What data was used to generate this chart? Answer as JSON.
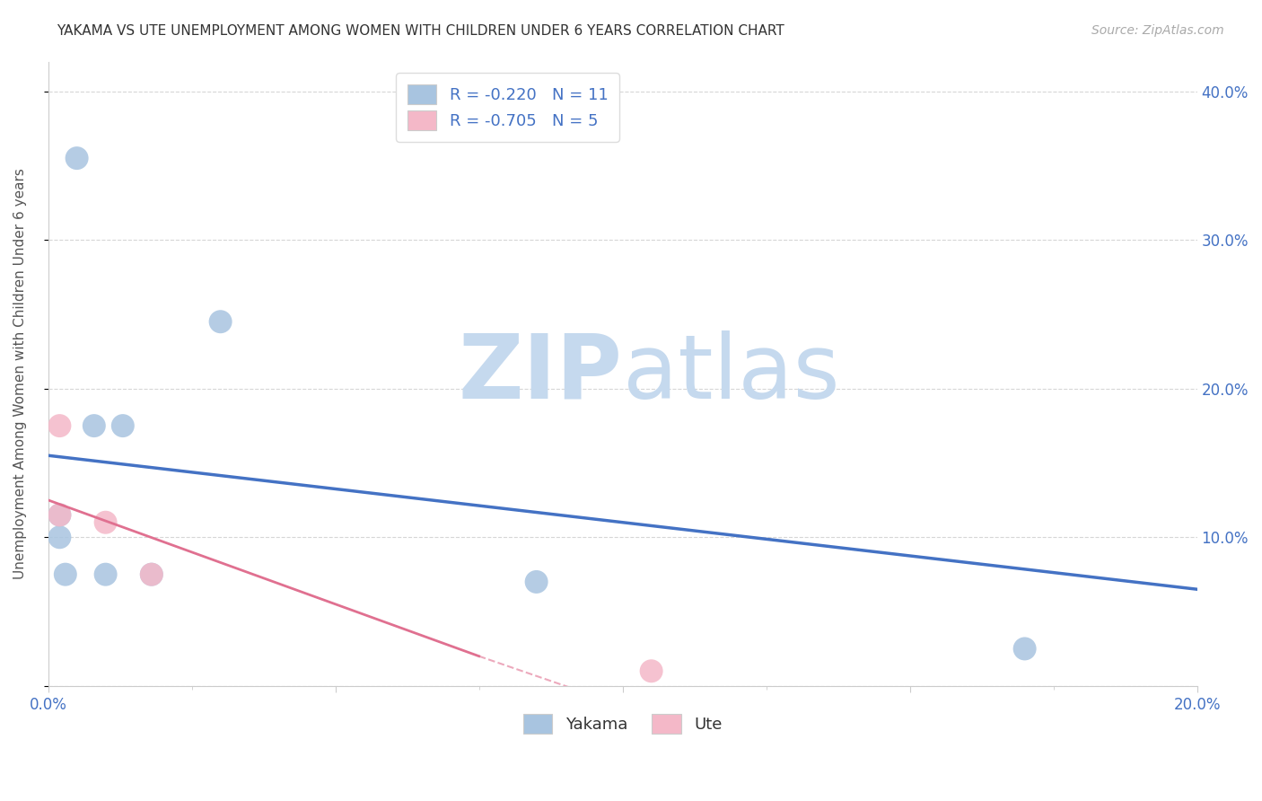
{
  "title": "YAKAMA VS UTE UNEMPLOYMENT AMONG WOMEN WITH CHILDREN UNDER 6 YEARS CORRELATION CHART",
  "source": "Source: ZipAtlas.com",
  "ylabel": "Unemployment Among Women with Children Under 6 years",
  "xlim": [
    0.0,
    0.2
  ],
  "ylim": [
    0.0,
    0.42
  ],
  "yakama_points": [
    [
      0.005,
      0.355
    ],
    [
      0.03,
      0.245
    ],
    [
      0.008,
      0.175
    ],
    [
      0.013,
      0.175
    ],
    [
      0.002,
      0.115
    ],
    [
      0.002,
      0.1
    ],
    [
      0.003,
      0.075
    ],
    [
      0.01,
      0.075
    ],
    [
      0.018,
      0.075
    ],
    [
      0.085,
      0.07
    ],
    [
      0.17,
      0.025
    ]
  ],
  "ute_points": [
    [
      0.002,
      0.175
    ],
    [
      0.002,
      0.115
    ],
    [
      0.01,
      0.11
    ],
    [
      0.018,
      0.075
    ],
    [
      0.105,
      0.01
    ]
  ],
  "yakama_line": [
    [
      0.0,
      0.155
    ],
    [
      0.2,
      0.065
    ]
  ],
  "ute_line_solid": [
    [
      0.0,
      0.125
    ],
    [
      0.075,
      0.02
    ]
  ],
  "ute_line_dash": [
    [
      0.075,
      0.02
    ],
    [
      0.135,
      -0.06
    ]
  ],
  "yakama_color": "#a8c4e0",
  "ute_color": "#f4b8c8",
  "yakama_line_color": "#4472c4",
  "ute_line_color": "#e07090",
  "legend_text_1": "R = -0.220   N = 11",
  "legend_text_2": "R = -0.705   N = 5",
  "watermark_zip_color": "#c5d9ee",
  "watermark_atlas_color": "#c5d9ee",
  "grid_color": "#cccccc",
  "background_color": "#ffffff",
  "title_color": "#333333",
  "source_color": "#aaaaaa",
  "axis_label_color": "#555555",
  "tick_color": "#4472c4",
  "legend_text_color": "#4472c4"
}
